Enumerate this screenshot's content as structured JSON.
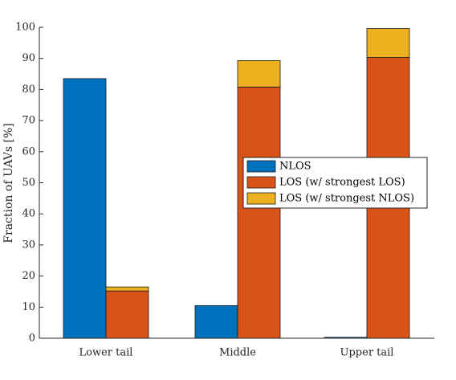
{
  "chart_data": {
    "type": "bar",
    "stacked_grouped": true,
    "title": "",
    "xlabel": "",
    "ylabel": "Fraction of UAVs [%]",
    "ylim": [
      0,
      100
    ],
    "yticks": [
      "0",
      "10",
      "20",
      "30",
      "40",
      "50",
      "60",
      "70",
      "80",
      "90",
      "100"
    ],
    "categories": [
      "Lower tail",
      "Middle",
      "Upper tail"
    ],
    "series": [
      {
        "name": "NLOS",
        "color": "#0072BD",
        "group": "left",
        "values": [
          83.5,
          10.5,
          0.3
        ]
      },
      {
        "name": "LOS (w/ strongest LOS)",
        "color": "#D95319",
        "group": "right",
        "values": [
          15.2,
          80.8,
          90.3
        ]
      },
      {
        "name": "LOS (w/ strongest NLOS)",
        "color": "#EDB120",
        "group": "right",
        "values": [
          1.3,
          8.5,
          9.3
        ]
      }
    ],
    "legend_position": "center-right",
    "grid": false
  }
}
